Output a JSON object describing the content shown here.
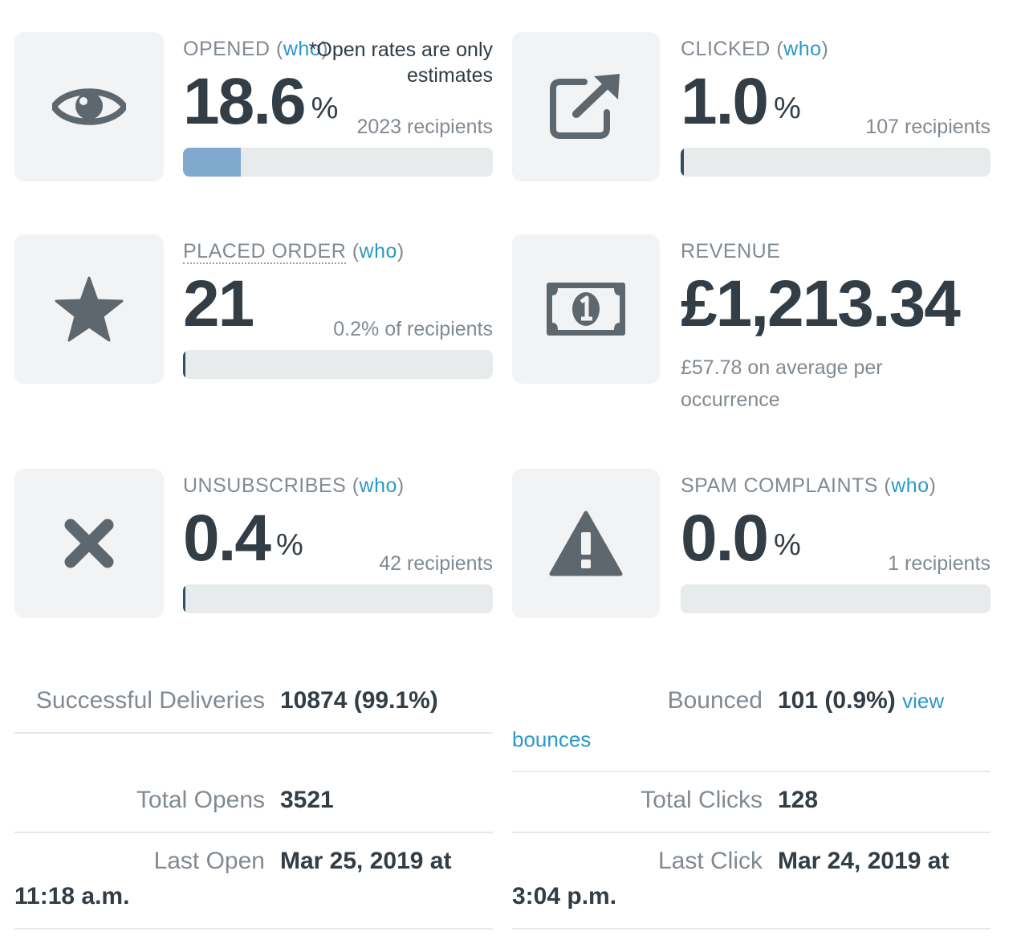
{
  "metrics": {
    "opened": {
      "label": "OPENED",
      "paren_open": "(",
      "who": "who",
      "paren_close": ")",
      "value": "18.6",
      "suffix": "%",
      "note": "*Open rates are only estimates",
      "recipients": "2023 recipients",
      "progress_percent": 18.6
    },
    "clicked": {
      "label": "CLICKED",
      "paren_open": "(",
      "who": "who",
      "paren_close": ")",
      "value": "1.0",
      "suffix": "%",
      "recipients": "107 recipients",
      "progress_percent": 1.0
    },
    "placed_order": {
      "label": "PLACED ORDER",
      "paren_open": "(",
      "who": "who",
      "paren_close": ")",
      "value": "21",
      "recipients": "0.2% of recipients",
      "progress_percent": 0.2
    },
    "revenue": {
      "label": "REVENUE",
      "value": "£1,213.34",
      "average": "£57.78 on average per occurrence"
    },
    "unsubscribes": {
      "label": "UNSUBSCRIBES",
      "paren_open": "(",
      "who": "who",
      "paren_close": ")",
      "value": "0.4",
      "suffix": "%",
      "recipients": "42 recipients",
      "progress_percent": 0.4
    },
    "spam": {
      "label": "SPAM COMPLAINTS",
      "paren_open": "(",
      "who": "who",
      "paren_close": ")",
      "value": "0.0",
      "suffix": "%",
      "recipients": "1 recipients",
      "progress_percent": 0.0
    }
  },
  "icons": {
    "opened": "eye-icon",
    "clicked": "external-link-icon",
    "placed_order": "star-icon",
    "revenue": "banknote-icon",
    "unsubscribes": "x-icon",
    "spam": "warning-icon"
  },
  "stats": {
    "successful_deliveries": {
      "label": "Successful Deliveries",
      "value": "10874 (99.1%)"
    },
    "bounced": {
      "label": "Bounced",
      "value": "101 (0.9%)",
      "link_part1": "view",
      "link_part2": "bounces"
    },
    "total_opens": {
      "label": "Total Opens",
      "value": "3521"
    },
    "total_clicks": {
      "label": "Total Clicks",
      "value": "128"
    },
    "last_open": {
      "label": "Last Open",
      "value_part1": "Mar 25, 2019 at",
      "value_part2": "11:18 a.m."
    },
    "last_click": {
      "label": "Last Click",
      "value_part1": "Mar 24, 2019 at",
      "value_part2": "3:04 p.m."
    }
  },
  "colors": {
    "link": "#2a98cc",
    "bar_fill_open": "#7fa9cd",
    "bar_fill": "#2f4e65",
    "bar_track": "#e8ebec",
    "icon": "#5f676e",
    "tile": "#f2f3f4"
  }
}
